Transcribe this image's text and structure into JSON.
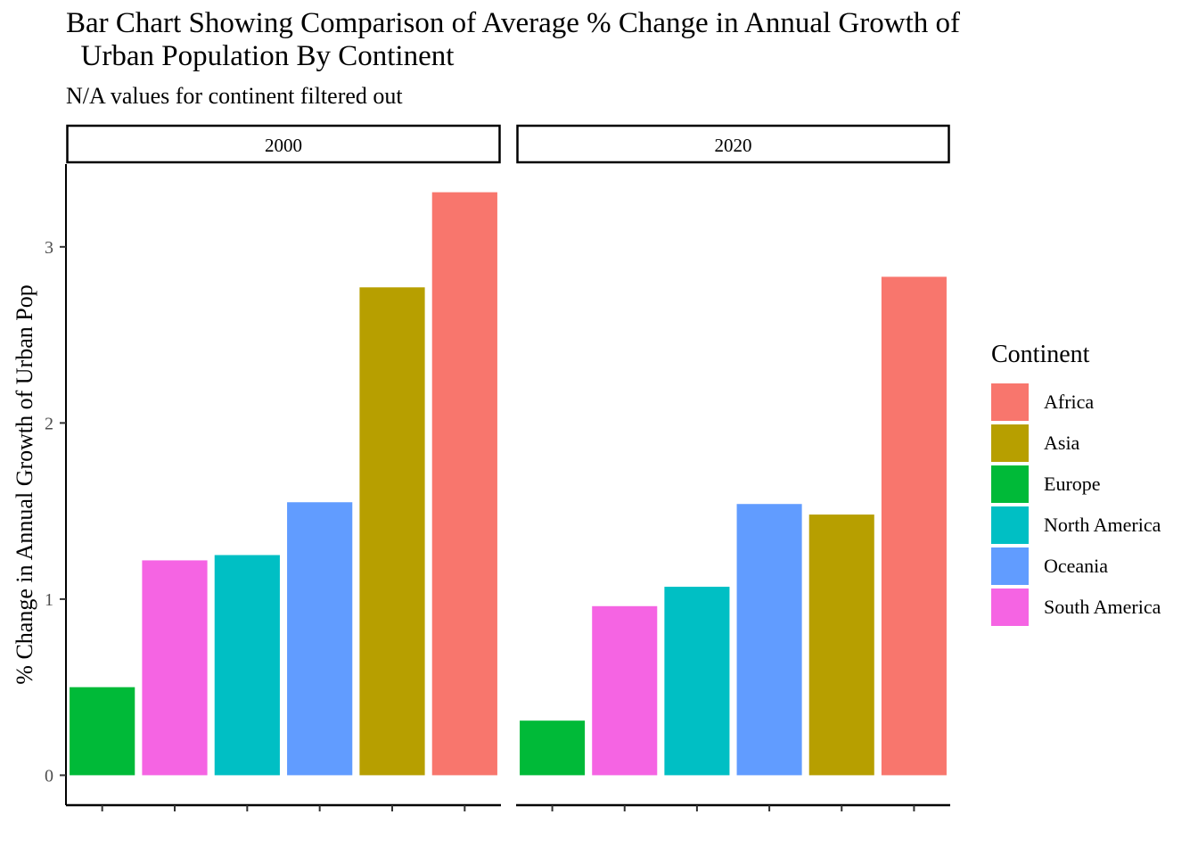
{
  "chart_data": {
    "type": "bar",
    "title": "Bar Chart Showing Comparison of Average % Change in Annual Growth of\n  Urban Population By Continent",
    "subtitle": "N/A values for continent filtered out",
    "xlabel": "",
    "ylabel": "% Change in Annual Growth of Urban Pop",
    "ylim": [
      -0.17,
      3.47
    ],
    "yticks": [
      "0",
      "1",
      "2",
      "3"
    ],
    "facets": [
      {
        "label": "2000",
        "bars": [
          {
            "continent": "Europe",
            "value": 0.5
          },
          {
            "continent": "South America",
            "value": 1.22
          },
          {
            "continent": "North America",
            "value": 1.25
          },
          {
            "continent": "Oceania",
            "value": 1.55
          },
          {
            "continent": "Asia",
            "value": 2.77
          },
          {
            "continent": "Africa",
            "value": 3.31
          }
        ]
      },
      {
        "label": "2020",
        "bars": [
          {
            "continent": "Europe",
            "value": 0.31
          },
          {
            "continent": "South America",
            "value": 0.96
          },
          {
            "continent": "North America",
            "value": 1.07
          },
          {
            "continent": "Oceania",
            "value": 1.54
          },
          {
            "continent": "Asia",
            "value": 1.48
          },
          {
            "continent": "Africa",
            "value": 2.83
          }
        ]
      }
    ],
    "legend": {
      "title": "Continent",
      "position": "right",
      "items": [
        {
          "label": "Africa",
          "color": "#F8766D"
        },
        {
          "label": "Asia",
          "color": "#B79F00"
        },
        {
          "label": "Europe",
          "color": "#00BA38"
        },
        {
          "label": "North America",
          "color": "#00BFC4"
        },
        {
          "label": "Oceania",
          "color": "#619CFF"
        },
        {
          "label": "South America",
          "color": "#F564E3"
        }
      ]
    },
    "grid": false
  }
}
